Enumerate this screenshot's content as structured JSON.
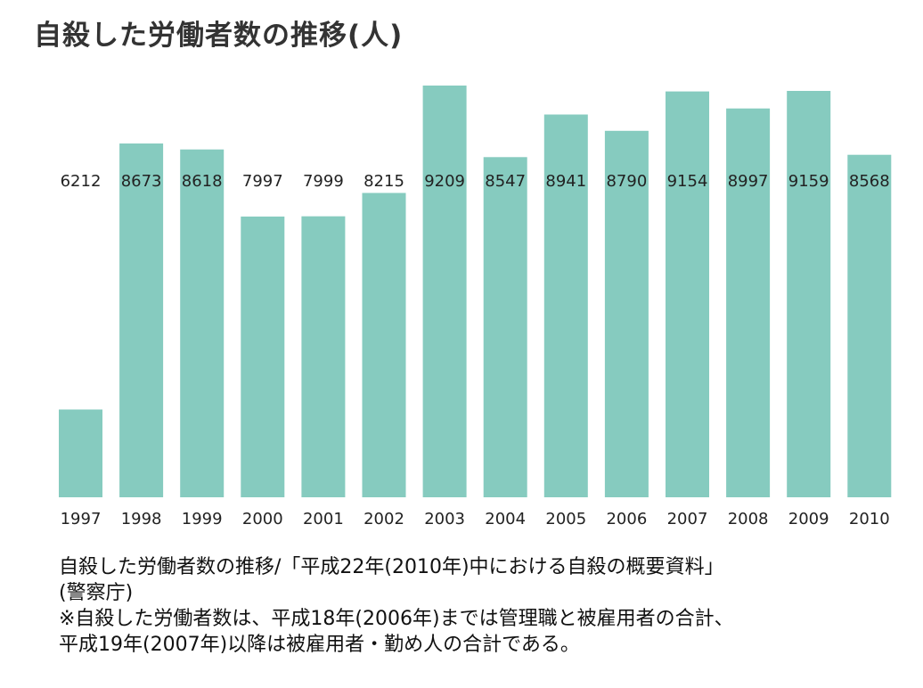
{
  "title": "自殺した労働者数の推移(人)",
  "chart_data": {
    "type": "bar",
    "categories": [
      "1997",
      "1998",
      "1999",
      "2000",
      "2001",
      "2002",
      "2003",
      "2004",
      "2005",
      "2006",
      "2007",
      "2008",
      "2009",
      "2010"
    ],
    "values": [
      6212,
      8673,
      8618,
      7997,
      7999,
      8215,
      9209,
      8547,
      8941,
      8790,
      9154,
      8997,
      9159,
      8568
    ],
    "value_labels": [
      "6212",
      "8673",
      "8618",
      "7997",
      "7999",
      "8215",
      "9209",
      "8547",
      "8941",
      "8790",
      "9154",
      "8997",
      "9159",
      "8568"
    ],
    "ylim": [
      5400,
      9250
    ],
    "bar_color": "#86cbbf",
    "grid": false,
    "legend": "none"
  },
  "caption": {
    "line1": "自殺した労働者数の推移/「平成22年(2010年)中における自殺の概要資料」",
    "line2": "(警察庁)",
    "line3": "※自殺した労働者数は、平成18年(2006年)までは管理職と被雇用者の合計、",
    "line4": "平成19年(2007年)以降は被雇用者・勤め人の合計である。"
  }
}
